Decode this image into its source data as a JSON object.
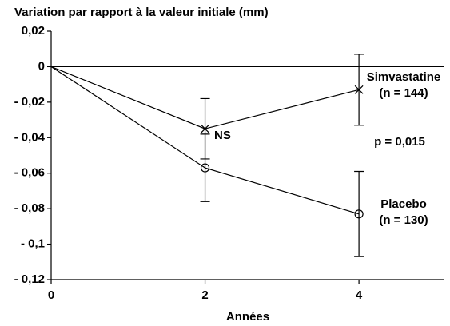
{
  "chart_data": {
    "type": "line",
    "title": "Variation par rapport à la valeur initiale (mm)",
    "x_label": "Années",
    "x": [
      0,
      2,
      4
    ],
    "series": [
      {
        "name": "Simvastatine",
        "color": "#000000",
        "marker": "x",
        "values": [
          0,
          -0.035,
          -0.013
        ],
        "errors": [
          null,
          0.017,
          0.02
        ]
      },
      {
        "name": "Placebo",
        "color": "#000000",
        "marker": "circle",
        "values": [
          0,
          -0.057,
          -0.083
        ],
        "errors": [
          null,
          0.019,
          0.024
        ]
      }
    ],
    "annotations": [
      "(n = 144)",
      "NS",
      "p = 0,015",
      "(n = 130)"
    ],
    "xlim": [
      0,
      5.1
    ],
    "xticks": [
      0,
      2,
      4
    ],
    "ylim": [
      -0.12,
      0.02
    ],
    "yticks": [
      {
        "value": 0.02,
        "label": "0,02"
      },
      0,
      {
        "value": -0.02,
        "label": "- 0,02"
      },
      {
        "value": -0.04,
        "label": "- 0,04"
      },
      {
        "value": -0.06,
        "label": "- 0,06"
      },
      {
        "value": -0.08,
        "label": "- 0,08"
      },
      {
        "value": -0.1,
        "label": "- 0,1"
      },
      {
        "value": -0.12,
        "label": "- 0,12"
      }
    ]
  }
}
